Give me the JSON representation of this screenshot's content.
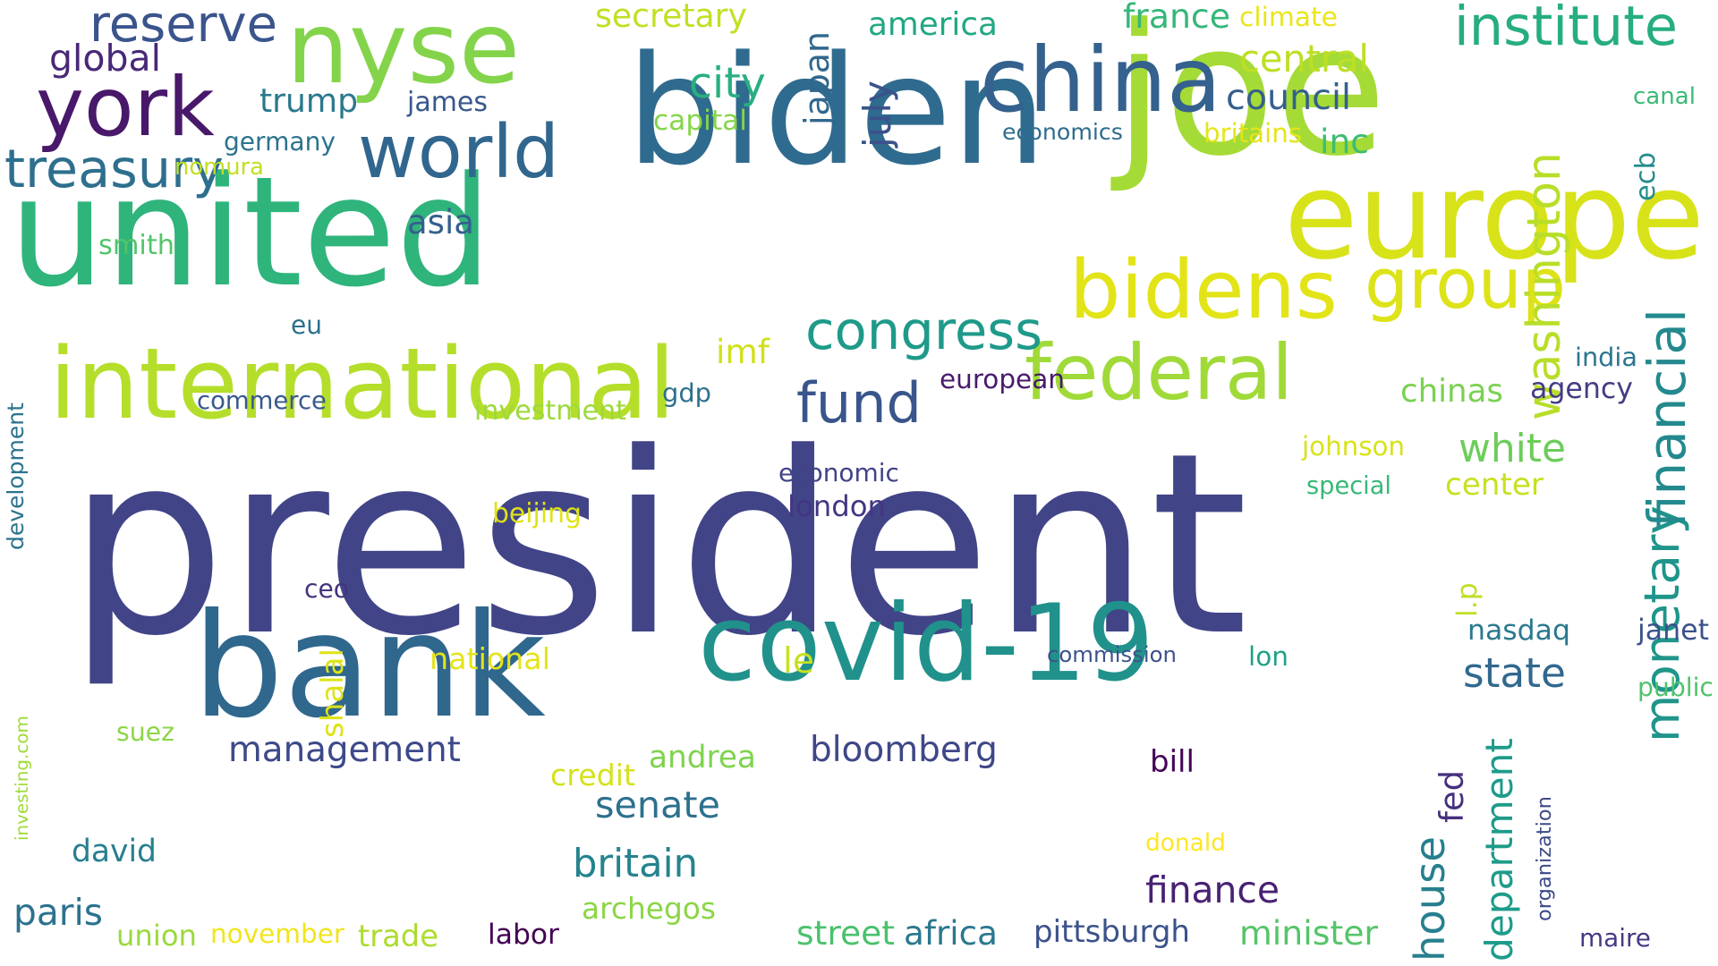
{
  "words": [
    {
      "text": "president",
      "color": "#414487",
      "vertical": false
    },
    {
      "text": "biden",
      "color": "#2f6b8e",
      "vertical": false
    },
    {
      "text": "united",
      "color": "#2fb47c",
      "vertical": false
    },
    {
      "text": "joe",
      "color": "#a5db36",
      "vertical": false
    },
    {
      "text": "covid-19",
      "color": "#21918c",
      "vertical": false
    },
    {
      "text": "bank",
      "color": "#30678d",
      "vertical": false
    },
    {
      "text": "europe",
      "color": "#d8e219",
      "vertical": false
    },
    {
      "text": "nyse",
      "color": "#84d44b",
      "vertical": false
    },
    {
      "text": "international",
      "color": "#b5de2b",
      "vertical": false
    },
    {
      "text": "china",
      "color": "#34618d",
      "vertical": false
    },
    {
      "text": "federal",
      "color": "#a0da39",
      "vertical": false
    },
    {
      "text": "bidens",
      "color": "#e2e418",
      "vertical": false
    },
    {
      "text": "york",
      "color": "#48186a",
      "vertical": false
    },
    {
      "text": "world",
      "color": "#31668e",
      "vertical": false
    },
    {
      "text": "group",
      "color": "#dde318",
      "vertical": false
    },
    {
      "text": "washington",
      "color": "#b8de29",
      "vertical": true
    },
    {
      "text": "treasury",
      "color": "#2e6f8e",
      "vertical": false
    },
    {
      "text": "institute",
      "color": "#26ad81",
      "vertical": false
    },
    {
      "text": "congress",
      "color": "#1f9a8a",
      "vertical": false
    },
    {
      "text": "fund",
      "color": "#39558c",
      "vertical": false
    },
    {
      "text": "monetary",
      "color": "#1f958b",
      "vertical": true
    },
    {
      "text": "financial",
      "color": "#23898e",
      "vertical": true
    },
    {
      "text": "reserve",
      "color": "#3a548c",
      "vertical": false
    },
    {
      "text": "management",
      "color": "#3e4989",
      "vertical": false
    },
    {
      "text": "bloomberg",
      "color": "#3f4788",
      "vertical": false
    },
    {
      "text": "senate",
      "color": "#2d708e",
      "vertical": false
    },
    {
      "text": "britain",
      "color": "#25838e",
      "vertical": false
    },
    {
      "text": "archegos",
      "color": "#8bd646",
      "vertical": false
    },
    {
      "text": "finance",
      "color": "#482173",
      "vertical": false
    },
    {
      "text": "central",
      "color": "#bddf26",
      "vertical": false
    },
    {
      "text": "council",
      "color": "#355f8d",
      "vertical": false
    },
    {
      "text": "trump",
      "color": "#2a788e",
      "vertical": false
    },
    {
      "text": "america",
      "color": "#22a884",
      "vertical": false
    },
    {
      "text": "secretary",
      "color": "#c2df23",
      "vertical": false
    },
    {
      "text": "global",
      "color": "#482878",
      "vertical": false
    },
    {
      "text": "white",
      "color": "#6ccd5a",
      "vertical": false
    },
    {
      "text": "center",
      "color": "#c8e020",
      "vertical": false
    },
    {
      "text": "chinas",
      "color": "#7ad151",
      "vertical": false
    },
    {
      "text": "nasdaq",
      "color": "#2a788e",
      "vertical": false
    },
    {
      "text": "state",
      "color": "#31688e",
      "vertical": false
    },
    {
      "text": "house",
      "color": "#277f8e",
      "vertical": true
    },
    {
      "text": "department",
      "color": "#1e9b8a",
      "vertical": true
    },
    {
      "text": "minister",
      "color": "#54c568",
      "vertical": false
    },
    {
      "text": "street",
      "color": "#4ac16d",
      "vertical": false
    },
    {
      "text": "pittsburgh",
      "color": "#3b528b",
      "vertical": false
    },
    {
      "text": "andrea",
      "color": "#7fd34e",
      "vertical": false
    },
    {
      "text": "david",
      "color": "#277f8e",
      "vertical": false
    },
    {
      "text": "paris",
      "color": "#2c728e",
      "vertical": false
    },
    {
      "text": "trade",
      "color": "#addc30",
      "vertical": false
    },
    {
      "text": "union",
      "color": "#9bd93c",
      "vertical": false
    },
    {
      "text": "november",
      "color": "#f1e51d",
      "vertical": false
    },
    {
      "text": "city",
      "color": "#29af7f",
      "vertical": false
    },
    {
      "text": "france",
      "color": "#35b779",
      "vertical": false
    },
    {
      "text": "inc",
      "color": "#3dbc74",
      "vertical": false
    },
    {
      "text": "imf",
      "color": "#d0e11c",
      "vertical": false
    },
    {
      "text": "asia",
      "color": "#355f8d",
      "vertical": false
    },
    {
      "text": "james",
      "color": "#38588c",
      "vertical": false
    },
    {
      "text": "germany",
      "color": "#2c738e",
      "vertical": false
    },
    {
      "text": "capital",
      "color": "#86d549",
      "vertical": false
    },
    {
      "text": "july",
      "color": "#3b528b",
      "vertical": true
    },
    {
      "text": "japan",
      "color": "#31678e",
      "vertical": true
    },
    {
      "text": "climate",
      "color": "#eae51a",
      "vertical": false
    },
    {
      "text": "economics",
      "color": "#2f6c8e",
      "vertical": false
    },
    {
      "text": "britains",
      "color": "#e4e419",
      "vertical": false
    },
    {
      "text": "canal",
      "color": "#3aba76",
      "vertical": false
    },
    {
      "text": "ecb",
      "color": "#228b8d",
      "vertical": true
    },
    {
      "text": "nomura",
      "color": "#c2df23",
      "vertical": false
    },
    {
      "text": "smith",
      "color": "#52c569",
      "vertical": false
    },
    {
      "text": "eu",
      "color": "#2c718e",
      "vertical": false
    },
    {
      "text": "commerce",
      "color": "#38598c",
      "vertical": false
    },
    {
      "text": "investment",
      "color": "#9dd93b",
      "vertical": false
    },
    {
      "text": "gdp",
      "color": "#2d708e",
      "vertical": false
    },
    {
      "text": "european",
      "color": "#481a6c",
      "vertical": false
    },
    {
      "text": "economic",
      "color": "#414487",
      "vertical": false
    },
    {
      "text": "london",
      "color": "#453581",
      "vertical": false
    },
    {
      "text": "beijing",
      "color": "#dfe318",
      "vertical": false
    },
    {
      "text": "development",
      "color": "#2c738e",
      "vertical": true
    },
    {
      "text": "ceo",
      "color": "#46337e",
      "vertical": false
    },
    {
      "text": "national",
      "color": "#e5e419",
      "vertical": false
    },
    {
      "text": "le",
      "color": "#c8e020",
      "vertical": false
    },
    {
      "text": "commission",
      "color": "#3b528b",
      "vertical": false
    },
    {
      "text": "lon",
      "color": "#1fa187",
      "vertical": false
    },
    {
      "text": "shalal",
      "color": "#dde318",
      "vertical": true
    },
    {
      "text": "investing.com",
      "color": "#a0da39",
      "vertical": true
    },
    {
      "text": "suez",
      "color": "#8bd646",
      "vertical": false
    },
    {
      "text": "credit",
      "color": "#d5e21a",
      "vertical": false
    },
    {
      "text": "bill",
      "color": "#450559",
      "vertical": false
    },
    {
      "text": "labor",
      "color": "#440154",
      "vertical": false
    },
    {
      "text": "africa",
      "color": "#2a788e",
      "vertical": false
    },
    {
      "text": "donald",
      "color": "#fde725",
      "vertical": false
    },
    {
      "text": "fed",
      "color": "#46307e",
      "vertical": true
    },
    {
      "text": "organization",
      "color": "#3e4a89",
      "vertical": true
    },
    {
      "text": "maire",
      "color": "#443b84",
      "vertical": false
    },
    {
      "text": "india",
      "color": "#2b758e",
      "vertical": false
    },
    {
      "text": "agency",
      "color": "#433d84",
      "vertical": false
    },
    {
      "text": "johnson",
      "color": "#d8e219",
      "vertical": false
    },
    {
      "text": "special",
      "color": "#38b977",
      "vertical": false
    },
    {
      "text": "l.p",
      "color": "#c0df25",
      "vertical": true
    },
    {
      "text": "janet",
      "color": "#3b528b",
      "vertical": false
    },
    {
      "text": "public",
      "color": "#4ec36b",
      "vertical": false
    }
  ]
}
